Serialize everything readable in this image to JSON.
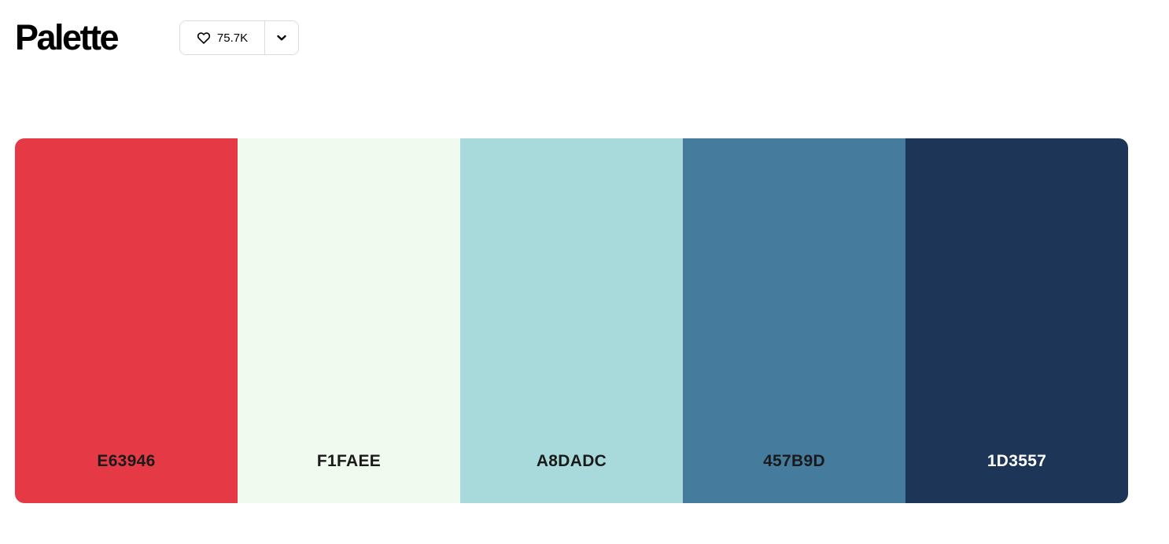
{
  "header": {
    "title": "Palette",
    "like_count": "75.7K",
    "like_icon": "heart-icon",
    "dropdown_icon": "chevron-down-icon"
  },
  "palette": {
    "colors": [
      {
        "hex": "E63946",
        "bg": "#E63946",
        "text_color": "#1a1a1a"
      },
      {
        "hex": "F1FAEE",
        "bg": "#F1FAEE",
        "text_color": "#1a1a1a"
      },
      {
        "hex": "A8DADC",
        "bg": "#A8DADC",
        "text_color": "#1a1a1a"
      },
      {
        "hex": "457B9D",
        "bg": "#457B9D",
        "text_color": "#1a1a1a"
      },
      {
        "hex": "1D3557",
        "bg": "#1D3557",
        "text_color": "#ffffff"
      }
    ]
  }
}
